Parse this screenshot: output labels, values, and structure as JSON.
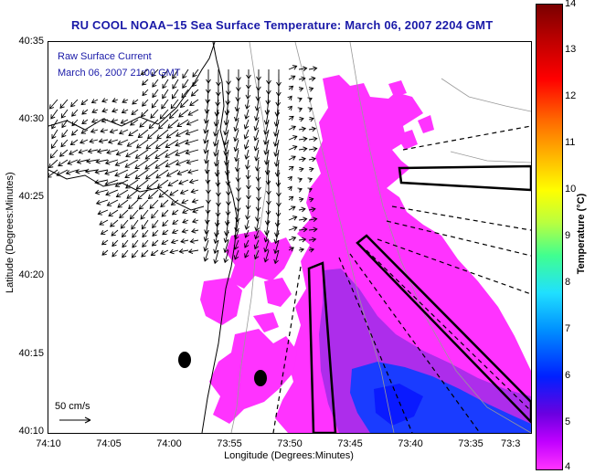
{
  "title": "RU COOL  NOAA−15  Sea Surface Temperature:  March 06, 2007 2204 GMT",
  "legend": {
    "line1": "Raw Surface Current",
    "line2": "March 06, 2007 21:00 GMT"
  },
  "scale_label": "50 cm/s",
  "axes": {
    "xlabel": "Longitude (Degrees:Minutes)",
    "ylabel": "Latitude (Degrees:Minutes)",
    "xticks": [
      "74:10",
      "74:05",
      "74:00",
      "73:55",
      "73:50",
      "73:45",
      "73:40",
      "73:35",
      "73:3"
    ],
    "yticks": [
      "40:35",
      "40:30",
      "40:25",
      "40:20",
      "40:15",
      "40:10"
    ]
  },
  "colorbar": {
    "title": "Temperature (°C)",
    "ticks": [
      "14",
      "13",
      "12",
      "11",
      "10",
      "9",
      "8",
      "7",
      "6",
      "5",
      "4"
    ],
    "range": [
      4,
      14
    ]
  },
  "colors": {
    "sst_main": "#ff33ff",
    "sst_cool": "#6a1fd8",
    "sst_cold": "#1a3cff",
    "title": "#1a1aa8"
  }
}
